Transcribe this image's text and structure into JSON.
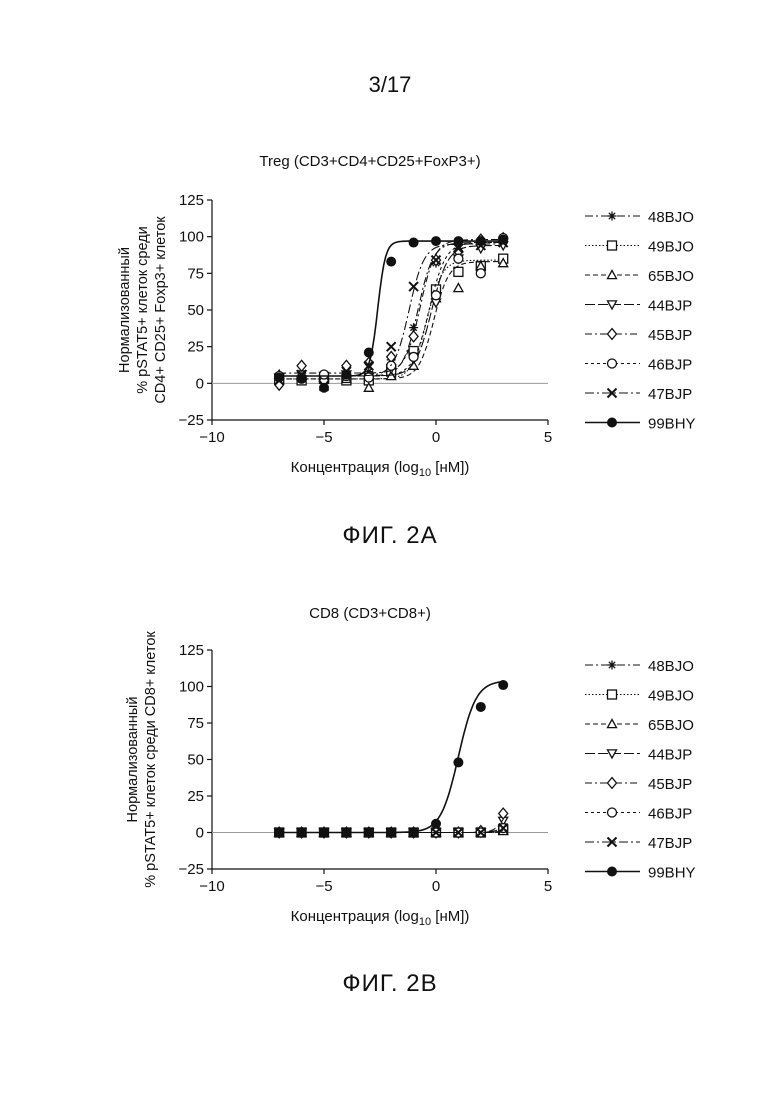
{
  "page_number": "3/17",
  "captions": {
    "fig_a": "ФИГ. 2А",
    "fig_b": "ФИГ. 2В"
  },
  "chart_data": [
    {
      "type": "scatter",
      "title": "Treg (CD3+CD4+CD25+FoxP3+)",
      "xlabel_main": "Концентрация (log",
      "xlabel_sub": "10",
      "xlabel_tail": " [нМ])",
      "ylabel_lines": [
        "Нормализованный",
        "% pSTAT5+ клеток среди",
        "CD4+ CD25+ Foxp3+ клеток"
      ],
      "xlim": [
        -10,
        5
      ],
      "ylim": [
        -25,
        125
      ],
      "xticks": [
        -10,
        -5,
        0,
        5
      ],
      "yticks": [
        -25,
        0,
        25,
        50,
        75,
        100,
        125
      ],
      "x": [
        -7,
        -6,
        -5,
        -4,
        -3,
        -2,
        -1,
        0,
        1,
        2,
        3
      ],
      "legend_position": "right",
      "series": [
        {
          "name": "48BJO",
          "marker": "asterisk",
          "dash": "8,3,2,3",
          "values": [
            5,
            4,
            6,
            5,
            8,
            16,
            38,
            82,
            92,
            95,
            96
          ],
          "fit": {
            "bottom": 5,
            "top": 96,
            "ec50": -0.8,
            "hill": 1.3
          }
        },
        {
          "name": "49BJO",
          "marker": "square",
          "dash": "1.5,2",
          "values": [
            3,
            2,
            3,
            2,
            2,
            8,
            22,
            64,
            76,
            80,
            85
          ],
          "fit": {
            "bottom": 3,
            "top": 84,
            "ec50": -0.4,
            "hill": 1.3
          }
        },
        {
          "name": "65BJO",
          "marker": "triangle",
          "dash": "5,3",
          "values": [
            6,
            5,
            4,
            3,
            -3,
            5,
            12,
            58,
            65,
            80,
            82
          ],
          "fit": {
            "bottom": 3,
            "top": 83,
            "ec50": -0.1,
            "hill": 1.3
          }
        },
        {
          "name": "44BJP",
          "marker": "triangle-down",
          "dash": "10,3",
          "values": [
            4,
            6,
            5,
            6,
            4,
            10,
            18,
            55,
            85,
            92,
            94
          ],
          "fit": {
            "bottom": 5,
            "top": 94,
            "ec50": -0.2,
            "hill": 1.2
          }
        },
        {
          "name": "45BJP",
          "marker": "diamond",
          "dash": "7,3,2,3",
          "values": [
            -1,
            12,
            2,
            12,
            14,
            18,
            32,
            84,
            90,
            98,
            99
          ],
          "fit": {
            "bottom": 7,
            "top": 98,
            "ec50": -0.7,
            "hill": 1.3
          }
        },
        {
          "name": "46BJP",
          "marker": "circle",
          "dash": "3,3",
          "values": [
            5,
            4,
            6,
            5,
            4,
            12,
            18,
            60,
            85,
            75,
            99
          ],
          "fit": {
            "bottom": 5,
            "top": 96,
            "ec50": -0.3,
            "hill": 1.2
          }
        },
        {
          "name": "47BJP",
          "marker": "x",
          "dash": "9,3,2,3",
          "values": [
            2,
            6,
            -2,
            8,
            12,
            25,
            66,
            84,
            92,
            94,
            96
          ],
          "fit": {
            "bottom": 5,
            "top": 95,
            "ec50": -1.2,
            "hill": 1.3
          }
        },
        {
          "name": "99BHY",
          "marker": "filled-circle",
          "dash": "",
          "values": [
            4,
            3,
            -3,
            6,
            21,
            83,
            96,
            97,
            97,
            97,
            98
          ],
          "fit": {
            "bottom": 5,
            "top": 97,
            "ec50": -2.6,
            "hill": 2.5
          }
        }
      ]
    },
    {
      "type": "scatter",
      "title": "CD8 (CD3+CD8+)",
      "xlabel_main": "Концентрация (log",
      "xlabel_sub": "10",
      "xlabel_tail": " [нМ])",
      "ylabel_lines": [
        "Нормализованный",
        "% pSTAT5+ клеток среди CD8+ клеток"
      ],
      "xlim": [
        -10,
        5
      ],
      "ylim": [
        -25,
        125
      ],
      "xticks": [
        -10,
        -5,
        0,
        5
      ],
      "yticks": [
        -25,
        0,
        25,
        50,
        75,
        100,
        125
      ],
      "x": [
        -7,
        -6,
        -5,
        -4,
        -3,
        -2,
        -1,
        0,
        1,
        2,
        3
      ],
      "legend_position": "right",
      "series": [
        {
          "name": "48BJO",
          "marker": "asterisk",
          "dash": "8,3,2,3",
          "values": [
            0,
            0,
            0,
            0,
            0,
            0,
            0,
            0,
            0,
            0,
            4
          ],
          "fit": {
            "bottom": 0,
            "top": 20,
            "ec50": 3.5,
            "hill": 1.5
          }
        },
        {
          "name": "49BJO",
          "marker": "square",
          "dash": "1.5,2",
          "values": [
            0,
            0,
            0,
            0,
            0,
            0,
            0,
            0,
            0,
            0,
            2
          ],
          "fit": {
            "bottom": 0,
            "top": 15,
            "ec50": 3.8,
            "hill": 1.5
          }
        },
        {
          "name": "65BJO",
          "marker": "triangle",
          "dash": "5,3",
          "values": [
            0,
            0,
            0,
            0,
            0,
            0,
            0,
            0,
            0,
            0,
            1
          ],
          "fit": {
            "bottom": 0,
            "top": 10,
            "ec50": 3.9,
            "hill": 1.5
          }
        },
        {
          "name": "44BJP",
          "marker": "triangle-down",
          "dash": "10,3",
          "values": [
            0,
            0,
            0,
            0,
            0,
            0,
            0,
            0,
            0,
            0,
            8
          ],
          "fit": {
            "bottom": 0,
            "top": 25,
            "ec50": 3.5,
            "hill": 1.5
          }
        },
        {
          "name": "45BJP",
          "marker": "diamond",
          "dash": "7,3,2,3",
          "values": [
            0,
            0,
            0,
            0,
            0,
            0,
            0,
            0,
            0,
            1,
            13
          ],
          "fit": {
            "bottom": 0,
            "top": 30,
            "ec50": 3.2,
            "hill": 1.8
          }
        },
        {
          "name": "46BJP",
          "marker": "circle",
          "dash": "3,3",
          "values": [
            0,
            0,
            0,
            0,
            0,
            0,
            0,
            0,
            0,
            0,
            3
          ],
          "fit": {
            "bottom": 0,
            "top": 15,
            "ec50": 3.7,
            "hill": 1.5
          }
        },
        {
          "name": "47BJP",
          "marker": "x",
          "dash": "9,3,2,3",
          "values": [
            0,
            0,
            0,
            0,
            0,
            0,
            0,
            0,
            0,
            0,
            3
          ],
          "fit": {
            "bottom": 0,
            "top": 15,
            "ec50": 3.7,
            "hill": 1.5
          }
        },
        {
          "name": "99BHY",
          "marker": "filled-circle",
          "dash": "",
          "values": [
            0,
            0,
            0,
            0,
            0,
            0,
            0,
            6,
            48,
            86,
            101
          ],
          "fit": {
            "bottom": 0,
            "top": 104,
            "ec50": 1.0,
            "hill": 1.1
          }
        }
      ]
    }
  ]
}
